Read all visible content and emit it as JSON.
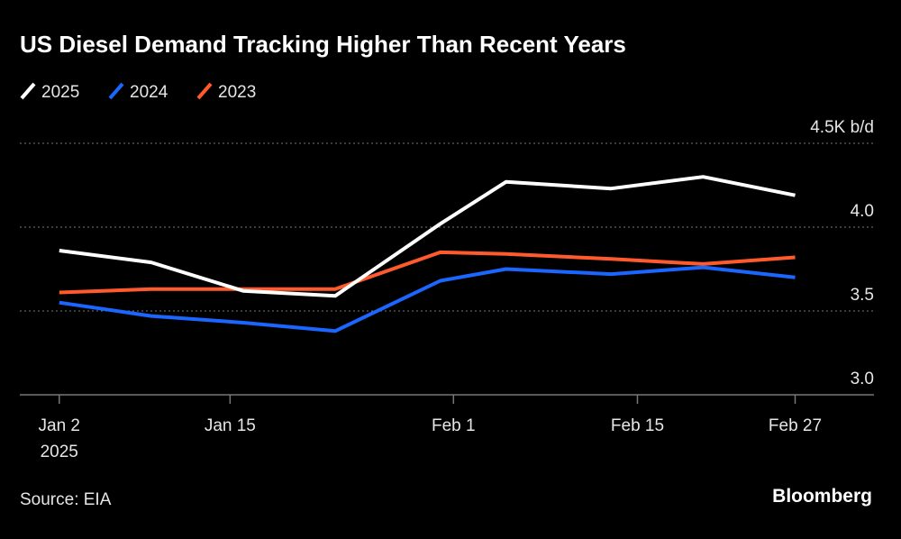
{
  "chart_data": {
    "type": "line",
    "title": "US Diesel Demand Tracking Higher Than Recent Years",
    "source": "Source: EIA",
    "brand": "Bloomberg",
    "x": [
      "2025-01-02",
      "2025-01-09",
      "2025-01-16",
      "2025-01-23",
      "2025-01-31",
      "2025-02-05",
      "2025-02-13",
      "2025-02-20",
      "2025-02-27"
    ],
    "xlim": [
      "2024-12-30",
      "2025-03-05"
    ],
    "xticks": [
      {
        "value": "2025-01-02",
        "label": "Jan 2"
      },
      {
        "value": "2025-01-15",
        "label": "Jan 15"
      },
      {
        "value": "2025-02-01",
        "label": "Feb 1"
      },
      {
        "value": "2025-02-15",
        "label": "Feb 15"
      },
      {
        "value": "2025-02-27",
        "label": "Feb 27"
      }
    ],
    "x_year_label": "2025",
    "ylim": [
      3,
      4.5
    ],
    "yticks": [
      {
        "value": 3,
        "label": "3.0"
      },
      3.5,
      {
        "value": 4,
        "label": "4.0"
      },
      {
        "value": 4.5,
        "label": "4.5K b/d"
      }
    ],
    "grid": true,
    "series": [
      {
        "name": "2025",
        "color": "#ffffff",
        "values": [
          3.86,
          3.79,
          3.62,
          3.59,
          4.02,
          4.27,
          4.23,
          4.3,
          4.19
        ]
      },
      {
        "name": "2024",
        "color": "#1a66ff",
        "values": [
          3.55,
          3.47,
          3.43,
          3.38,
          3.68,
          3.75,
          3.72,
          3.76,
          3.7
        ]
      },
      {
        "name": "2023",
        "color": "#ff5a2d",
        "values": [
          3.61,
          3.63,
          3.63,
          3.63,
          3.85,
          3.84,
          3.81,
          3.78,
          3.82
        ]
      }
    ]
  }
}
